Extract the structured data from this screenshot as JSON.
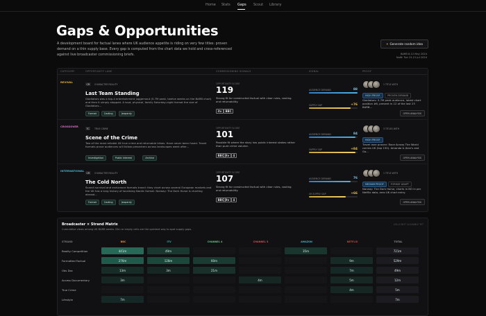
{
  "nav": {
    "items": [
      "Home",
      "Stats",
      "Gaps",
      "Scout",
      "Library"
    ],
    "active": 2
  },
  "header": {
    "title": "Gaps & Opportunities",
    "description": "A development board for factual lanes where UK audience appetite is riding on very few titles: proven demand on a thin supply base. Every gap is computed from the chart data we hold and cross-referenced against live broadcaster commissioning briefs.",
    "button": "Generate random idea",
    "meta": [
      "BARB 6-12 May 2024",
      "NoW: Tue 15-21 Jul 2024"
    ]
  },
  "table": {
    "columns": [
      "CATEGORY",
      "OPPORTUNITY LANE",
      "COMMISSIONING SIGNALS",
      "SIGNAL",
      "PROOF"
    ],
    "rows": [
      {
        "category": "REVIVAL",
        "code": "CR",
        "code_label": "CHARACTER REALITY",
        "title": "Last Team Standing",
        "description": "Gladiators was a top-4 entertainment juggernaut (5.7M peak, twelve weeks on the BARB chart) and then it simply stopped. A loud, physical, family Saturday-night format the size of Gladiators...",
        "chips": [
          "Format",
          "Casting",
          "Jeopardy"
        ],
        "score_label": "OPPORTUNITY SCORE",
        "score": 119,
        "score_text": "Strong fit for constructed factual with clear rules, casting and returnability.",
        "broadcasters": [
          "itv",
          "BBC"
        ],
        "signal_labels": [
          "AUDIENCE DEMAND",
          "SUPPLY GAP"
        ],
        "signal_values": [
          88,
          76
        ],
        "signal_value_labels": [
          "88",
          "+76"
        ],
        "proof_caption": "1 TITLE WITH",
        "proof_chips": [
          "HIGH PROOF",
          "PROVEN DEMAND"
        ],
        "proof_text": "Gladiators: 5.7M peak audience, latest chart position #6, present in 12 of the last 23 BARB...",
        "proof_button": "OPEN ANALYSIS"
      },
      {
        "category": "CROSSOVER",
        "code": "TC",
        "code_label": "TRUE CRIME",
        "title": "Scene of the Crime",
        "description": "Two of the most reliable UK true crime and returnable tribes. Have never been fused. Travel formats prove audiences will follow presenters across landscapes week after...",
        "chips": [
          "Investigation",
          "Public interest",
          "Archive"
        ],
        "score_label": "OPPORTUNITY SCORE",
        "score": 101,
        "score_text": "Possible fit where the story has public interest stakes rather than pure crime volume.",
        "broadcasters": [
          "BBC",
          "itv",
          "4"
        ],
        "signal_labels": [
          "AUDIENCE DEMAND",
          "SUPPLY GAP"
        ],
        "signal_values": [
          84,
          84
        ],
        "signal_value_labels": [
          "84",
          "+84"
        ],
        "proof_caption": "3 TITLES WITH",
        "proof_chips": [
          "HIGH PROOF"
        ],
        "proof_text": "Travel lane proven: Race Across The World carries UK (top 150). Amanda & Alan's and Go...",
        "proof_button": "OPEN ANALYSIS"
      },
      {
        "category": "INTERNATIONAL",
        "code": "CR",
        "code_label": "CHARACTER REALITY",
        "title": "The Cold North",
        "description": "Scandi survival and endurance formats travel: they chart across several European markets and the UK has a long history of localising Nordic format. Norway: The Dark Horse is charting abroad...",
        "chips": [
          "Format",
          "Casting",
          "Jeopardy"
        ],
        "score_label": "OPPORTUNITY SCORE",
        "score": 107,
        "score_text": "Strong fit for constructed factual with clear rules, casting and returnability.",
        "broadcasters": [
          "BBC",
          "itv",
          "4"
        ],
        "signal_labels": [
          "AUDIENCE DEMAND",
          "UK SUPPLY GAP"
        ],
        "signal_values": [
          76,
          66
        ],
        "signal_value_labels": [
          "76",
          "+66"
        ],
        "proof_caption": "1 TITLE WITH",
        "proof_chips": [
          "MEDIUM PROOF",
          "FORMAT ADAPT"
        ],
        "proof_text": "Norway: The Dark Horse, charts in NO in per Netflix data, zero UK chart entry.",
        "proof_button": "OPEN ANALYSIS"
      }
    ]
  },
  "matrix": {
    "title": "Broadcaster × Strand Matrix",
    "subtitle": "Cumulative views among UK BARB weeks. Dim or empty cells are the quickest way to spot supply gaps.",
    "note": "CELLS NOT CLICKABLE YET",
    "columns": [
      "STRAND",
      "BBC",
      "ITV",
      "CHANNEL 4",
      "CHANNEL 5",
      "AMAZON",
      "NETFLIX",
      "TOTAL"
    ],
    "column_colors": [
      "#777",
      "#e08a3c",
      "#2fb6a0",
      "#5fc48b",
      "#d04f5a",
      "#3fb0d6",
      "#d0423f",
      "#8d8d8d"
    ],
    "rows": [
      [
        "Reality Competition",
        "441m",
        "49m",
        null,
        null,
        "35m",
        null,
        "721m"
      ],
      [
        "Formatted Factual",
        "276m",
        "128m",
        "60m",
        null,
        null,
        "9m",
        "529m"
      ],
      [
        "Obs Doc",
        "13m",
        "3m",
        "21m",
        null,
        null,
        "7m",
        "49m"
      ],
      [
        "Access Documentary",
        "3m",
        null,
        null,
        "4m",
        null,
        "5m",
        "12m"
      ],
      [
        "True Crime",
        null,
        null,
        null,
        null,
        null,
        "4m",
        "5m"
      ],
      [
        "Lifestyle",
        "7m",
        null,
        null,
        null,
        null,
        null,
        "7m"
      ]
    ]
  }
}
